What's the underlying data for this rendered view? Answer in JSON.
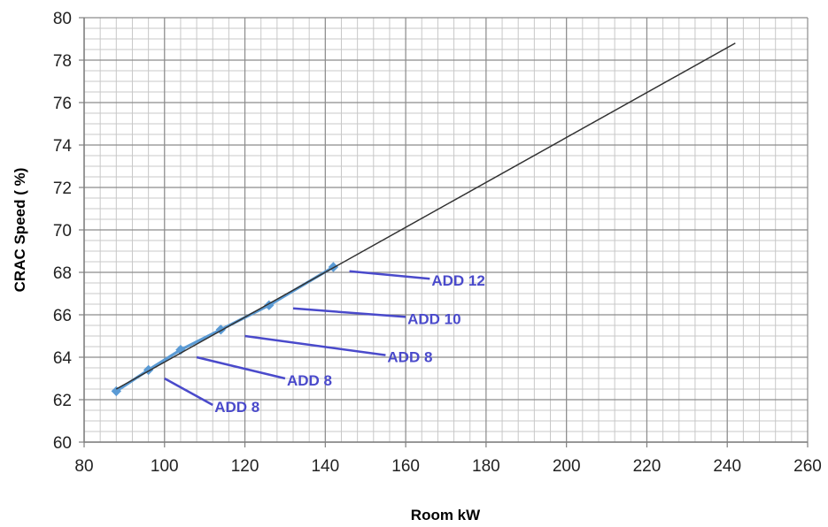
{
  "chart_data": {
    "type": "scatter",
    "xlabel": "Room kW",
    "ylabel": "CRAC Speed ( %)",
    "xlim": [
      80,
      260
    ],
    "ylim": [
      60,
      80
    ],
    "x_ticks": [
      80,
      100,
      120,
      140,
      160,
      180,
      200,
      220,
      240,
      260
    ],
    "y_ticks": [
      60,
      62,
      64,
      66,
      68,
      70,
      72,
      74,
      76,
      78,
      80
    ],
    "grid": true,
    "minor_grid": {
      "x_step": 4,
      "y_step": 0.5
    },
    "legend": "none",
    "series": [
      {
        "type": "line-markers",
        "color": "#5b9bd5",
        "marker": "diamond",
        "x": [
          88,
          96,
          104,
          114,
          126,
          142
        ],
        "y": [
          62.4,
          63.4,
          64.35,
          65.3,
          66.45,
          68.25
        ]
      },
      {
        "type": "trendline",
        "color": "#333333",
        "x": [
          88,
          242
        ],
        "y": [
          62.5,
          78.8
        ]
      }
    ],
    "annotations": [
      {
        "text": "ADD 8",
        "line_from": [
          100,
          63.0
        ],
        "line_to": [
          112,
          61.75
        ]
      },
      {
        "text": "ADD 8",
        "line_from": [
          108,
          64.0
        ],
        "line_to": [
          130,
          63.0
        ]
      },
      {
        "text": "ADD 8",
        "line_from": [
          120,
          65.0
        ],
        "line_to": [
          155,
          64.1
        ]
      },
      {
        "text": "ADD 10",
        "line_from": [
          132,
          66.3
        ],
        "line_to": [
          160,
          65.9
        ]
      },
      {
        "text": "ADD 12",
        "line_from": [
          146,
          68.05
        ],
        "line_to": [
          166,
          67.7
        ]
      }
    ],
    "annotation_color": "#4a4acb"
  }
}
